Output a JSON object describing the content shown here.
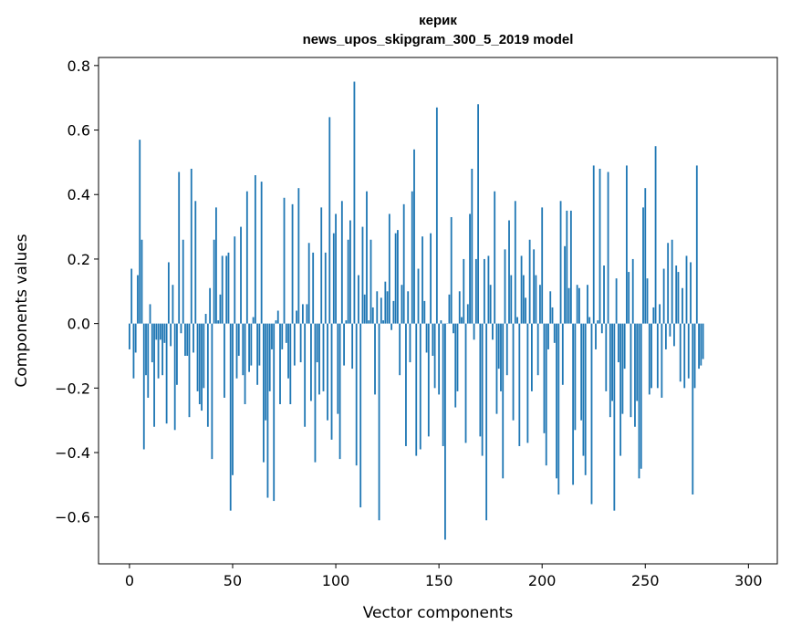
{
  "chart_data": {
    "type": "bar",
    "title": "керик",
    "subtitle": "news_upos_skipgram_300_5_2019 model",
    "xlabel": "Vector components",
    "ylabel": "Components values",
    "xlim": [
      -15,
      314
    ],
    "ylim": [
      -0.745,
      0.825
    ],
    "xticks": [
      0,
      50,
      100,
      150,
      200,
      250,
      300
    ],
    "yticks": [
      -0.6,
      -0.4,
      -0.2,
      0.0,
      0.2,
      0.4,
      0.6,
      0.8
    ],
    "ytick_labels": [
      "−0.6",
      "−0.4",
      "−0.2",
      "0.0",
      "0.2",
      "0.4",
      "0.6",
      "0.8"
    ],
    "grid": false,
    "color": "#1f77b4",
    "values": [
      -0.08,
      0.17,
      -0.17,
      -0.09,
      0.15,
      0.57,
      0.26,
      -0.39,
      -0.16,
      -0.23,
      0.06,
      -0.12,
      -0.32,
      -0.05,
      -0.17,
      -0.05,
      -0.16,
      -0.06,
      -0.31,
      0.19,
      -0.07,
      0.12,
      -0.33,
      -0.19,
      0.47,
      -0.03,
      0.26,
      -0.1,
      -0.1,
      -0.29,
      0.48,
      -0.09,
      0.38,
      -0.21,
      -0.25,
      -0.27,
      -0.2,
      0.03,
      -0.32,
      0.11,
      -0.42,
      0.26,
      0.36,
      0.01,
      0.09,
      0.21,
      -0.23,
      0.21,
      0.22,
      -0.58,
      -0.47,
      0.27,
      -0.17,
      -0.1,
      0.3,
      -0.16,
      -0.25,
      0.41,
      -0.15,
      -0.13,
      0.02,
      0.46,
      -0.19,
      -0.13,
      0.44,
      -0.43,
      -0.3,
      -0.54,
      -0.21,
      -0.08,
      -0.55,
      0.01,
      0.04,
      -0.25,
      -0.08,
      0.39,
      -0.06,
      -0.17,
      -0.25,
      0.37,
      -0.13,
      0.04,
      0.42,
      -0.12,
      0.06,
      -0.32,
      0.06,
      0.25,
      -0.24,
      0.22,
      -0.43,
      -0.12,
      -0.22,
      0.36,
      -0.21,
      0.22,
      -0.3,
      0.64,
      -0.36,
      0.28,
      0.34,
      -0.28,
      -0.42,
      0.38,
      -0.13,
      0.01,
      0.26,
      0.32,
      -0.14,
      0.75,
      -0.44,
      0.15,
      -0.57,
      0.3,
      0.09,
      0.41,
      0.01,
      0.26,
      0.05,
      -0.22,
      0.1,
      -0.61,
      0.08,
      0.01,
      0.13,
      0.1,
      0.34,
      -0.02,
      0.07,
      0.28,
      0.29,
      -0.16,
      0.12,
      0.37,
      -0.38,
      0.1,
      -0.12,
      0.41,
      0.54,
      -0.41,
      0.17,
      -0.39,
      0.27,
      0.07,
      -0.09,
      -0.35,
      0.28,
      -0.1,
      -0.2,
      0.67,
      -0.22,
      0.01,
      -0.38,
      -0.67,
      0.0,
      0.09,
      0.33,
      -0.03,
      -0.26,
      -0.21,
      0.1,
      0.02,
      0.2,
      -0.37,
      0.06,
      0.34,
      0.48,
      -0.05,
      0.2,
      0.68,
      -0.35,
      -0.41,
      0.2,
      -0.61,
      0.21,
      0.12,
      -0.05,
      0.41,
      -0.28,
      -0.14,
      -0.21,
      -0.48,
      0.23,
      -0.16,
      0.32,
      0.15,
      -0.3,
      0.38,
      0.02,
      -0.38,
      0.21,
      0.15,
      0.08,
      -0.37,
      0.26,
      -0.21,
      0.23,
      0.15,
      -0.16,
      0.12,
      0.36,
      -0.34,
      -0.44,
      -0.08,
      0.1,
      0.05,
      -0.06,
      -0.48,
      -0.53,
      0.38,
      -0.19,
      0.24,
      0.35,
      0.11,
      0.35,
      -0.5,
      -0.33,
      0.12,
      0.11,
      -0.3,
      -0.41,
      -0.47,
      0.12,
      0.02,
      -0.56,
      0.49,
      -0.08,
      0.01,
      0.48,
      -0.03,
      0.18,
      -0.21,
      0.47,
      -0.29,
      -0.24,
      -0.58,
      0.14,
      -0.12,
      -0.41,
      -0.28,
      -0.14,
      0.49,
      0.16,
      -0.29,
      0.2,
      -0.32,
      -0.24,
      -0.48,
      -0.45,
      0.36,
      0.42,
      0.14,
      -0.22,
      -0.2,
      0.05,
      0.55,
      -0.2,
      0.06,
      -0.23,
      0.17,
      -0.08,
      0.25,
      -0.04,
      0.26,
      -0.07,
      0.18,
      0.16,
      -0.18,
      0.11,
      -0.2,
      0.21,
      -0.17,
      0.19,
      -0.53,
      -0.2,
      0.49,
      -0.14,
      -0.13,
      -0.11
    ]
  }
}
